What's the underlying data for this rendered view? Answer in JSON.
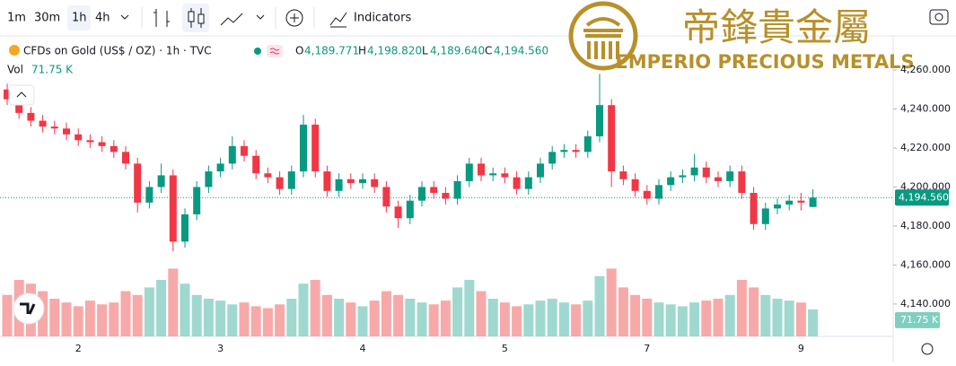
{
  "toolbar": {
    "intervals": [
      "1m",
      "30m",
      "1h",
      "4h"
    ],
    "indicators": "Indicators"
  },
  "logo": {
    "chinese": "帝鋒貴金屬",
    "english": "EMPERIO PRECIOUS METALS"
  },
  "chart_data": {
    "type": "candlestick",
    "title": "CFDs on Gold (US$ / OZ) · 1h · TVC",
    "ohlc_letters": [
      "O",
      "H",
      "L",
      "C"
    ],
    "ohlc_labels": {
      "open": "4,189.771",
      "high": "4,198.820",
      "low": "4,189.640",
      "close": "4,194.560"
    },
    "last_price_label": "4,194.560",
    "up_color": "#089981",
    "down_color": "#f23645",
    "categories": [
      null,
      null,
      null,
      null,
      null,
      null,
      "2",
      null,
      null,
      null,
      null,
      null,
      null,
      null,
      null,
      null,
      null,
      null,
      "3",
      null,
      null,
      null,
      null,
      null,
      null,
      null,
      null,
      null,
      null,
      null,
      "4",
      null,
      null,
      null,
      null,
      null,
      null,
      null,
      null,
      null,
      null,
      null,
      "5",
      null,
      null,
      null,
      null,
      null,
      null,
      null,
      null,
      null,
      null,
      null,
      "7",
      null,
      null,
      null,
      null,
      null,
      null,
      null,
      null,
      null,
      null,
      null,
      null,
      "9",
      null
    ],
    "open": [
      4250,
      4245,
      4238,
      4234,
      4231,
      4230,
      4227,
      4224,
      4223,
      4221,
      4218,
      4212,
      4192,
      4200,
      4206,
      4172,
      4186,
      4200,
      4208,
      4212,
      4221,
      4216,
      4207,
      4205,
      4199,
      4208,
      4232,
      4208,
      4198,
      4204,
      4202,
      4204,
      4200,
      4190,
      4184,
      4193,
      4200,
      4197,
      4194,
      4203,
      4212,
      4206,
      4207,
      4205,
      4199,
      4205,
      4212,
      4218,
      4219,
      4218,
      4226,
      4242,
      4208,
      4204,
      4198,
      4194,
      4201,
      4205,
      4206,
      4210,
      4205,
      4203,
      4208,
      4197,
      4181,
      4189,
      4191,
      4193,
      4189.771
    ],
    "high": [
      4253,
      4248,
      4241,
      4237,
      4234,
      4233,
      4230,
      4227,
      4226,
      4224,
      4221,
      4215,
      4203,
      4212,
      4209,
      4189,
      4203,
      4211,
      4215,
      4226,
      4224,
      4219,
      4210,
      4208,
      4211,
      4237,
      4235,
      4211,
      4207,
      4207,
      4207,
      4207,
      4203,
      4193,
      4196,
      4203,
      4203,
      4200,
      4206,
      4215,
      4215,
      4210,
      4210,
      4208,
      4208,
      4215,
      4221,
      4222,
      4222,
      4229,
      4258,
      4245,
      4211,
      4207,
      4201,
      4204,
      4208,
      4209,
      4217,
      4213,
      4208,
      4211,
      4211,
      4200,
      4192,
      4194,
      4196,
      4197,
      4198.82
    ],
    "low": [
      4242,
      4235,
      4231,
      4228,
      4227,
      4224,
      4221,
      4220,
      4218,
      4215,
      4209,
      4187,
      4189,
      4197,
      4167,
      4169,
      4183,
      4197,
      4205,
      4209,
      4213,
      4204,
      4202,
      4196,
      4196,
      4205,
      4205,
      4195,
      4195,
      4199,
      4199,
      4197,
      4187,
      4179,
      4181,
      4190,
      4194,
      4191,
      4191,
      4200,
      4203,
      4203,
      4202,
      4196,
      4196,
      4202,
      4209,
      4215,
      4215,
      4215,
      4223,
      4200,
      4201,
      4195,
      4191,
      4191,
      4198,
      4202,
      4203,
      4202,
      4200,
      4200,
      4194,
      4178,
      4178,
      4186,
      4188,
      4188,
      4189.64
    ],
    "close": [
      4245,
      4238,
      4234,
      4231,
      4230,
      4227,
      4224,
      4223,
      4221,
      4218,
      4212,
      4192,
      4200,
      4206,
      4172,
      4186,
      4200,
      4208,
      4212,
      4221,
      4216,
      4207,
      4205,
      4199,
      4208,
      4232,
      4208,
      4198,
      4204,
      4202,
      4204,
      4200,
      4190,
      4184,
      4193,
      4200,
      4197,
      4194,
      4203,
      4212,
      4206,
      4207,
      4205,
      4199,
      4205,
      4212,
      4218,
      4219,
      4218,
      4226,
      4242,
      4208,
      4204,
      4198,
      4194,
      4201,
      4205,
      4206,
      4210,
      4205,
      4203,
      4208,
      4197,
      4181,
      4189,
      4191,
      4193,
      4192,
      4194.56
    ],
    "ylim": [
      4123.4,
      4277.5
    ],
    "yticks": [
      {
        "value": 4140,
        "label": "4,140.000"
      },
      {
        "value": 4160,
        "label": "4,160.000"
      },
      {
        "value": 4180,
        "label": "4,180.000"
      },
      {
        "value": 4200,
        "label": "4,200.000"
      },
      {
        "value": 4220,
        "label": "4,220.000"
      },
      {
        "value": 4240,
        "label": "4,240.000"
      },
      {
        "value": 4260,
        "label": "4,260.000"
      }
    ],
    "volume": {
      "name": "Vol",
      "label": "71.75 K",
      "up_color": "#9fd8cf",
      "down_color": "#f7a9a9",
      "ylim": [
        0,
        200
      ],
      "values": [
        110,
        150,
        140,
        120,
        100,
        90,
        80,
        95,
        85,
        90,
        120,
        110,
        130,
        150,
        180,
        140,
        110,
        100,
        95,
        85,
        90,
        80,
        75,
        85,
        100,
        140,
        150,
        110,
        100,
        90,
        80,
        95,
        120,
        110,
        100,
        90,
        85,
        95,
        130,
        150,
        120,
        100,
        90,
        80,
        85,
        95,
        100,
        90,
        85,
        95,
        160,
        180,
        130,
        110,
        100,
        90,
        85,
        80,
        90,
        95,
        100,
        110,
        150,
        130,
        110,
        100,
        95,
        90,
        71.75
      ]
    }
  }
}
